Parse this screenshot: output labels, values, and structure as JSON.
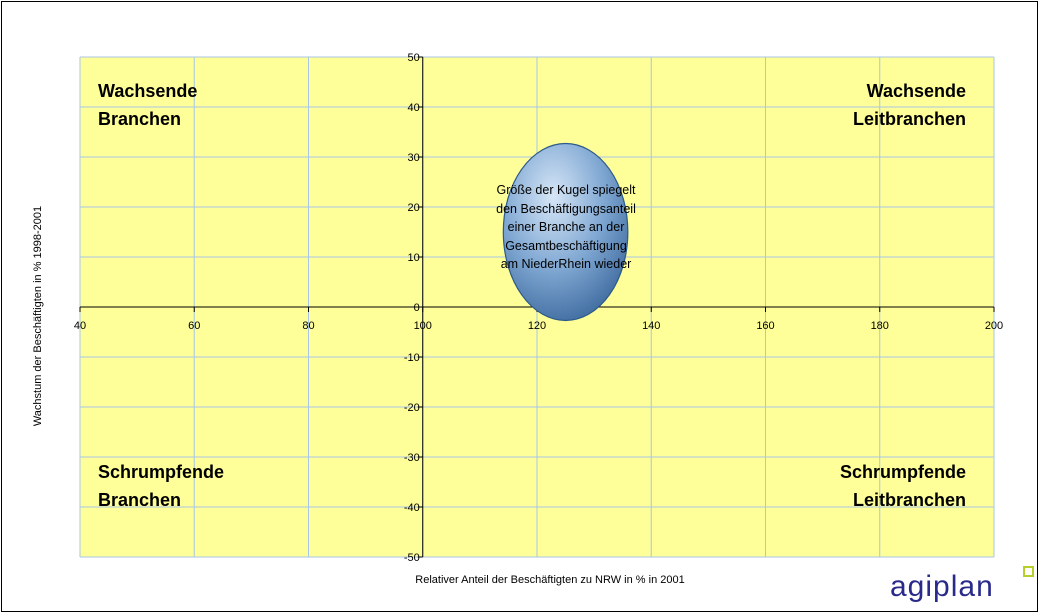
{
  "chart_data": {
    "type": "bubble",
    "xlabel": "Relativer Anteil der Beschäftigten zu NRW in % in 2001",
    "ylabel": "Wachstum der Beschäftigten in % 1998-2001",
    "xlim": [
      40,
      200
    ],
    "ylim": [
      -50,
      50
    ],
    "x_ticks": [
      40,
      60,
      80,
      100,
      120,
      140,
      160,
      180,
      200
    ],
    "y_ticks": [
      50,
      40,
      30,
      20,
      10,
      0,
      -10,
      -20,
      -30,
      -40,
      -50
    ],
    "grid": true,
    "axes_cross_at": {
      "x": 100,
      "y": 0
    },
    "plot_background": "#ffff99",
    "gridline_color": "#a8c6e6",
    "points": [
      {
        "x": 125,
        "y": 15,
        "size": "large",
        "color": "#6f9bc9",
        "label_lines": [
          "Größe der Kugel spiegelt",
          "den Beschäftigungsanteil",
          "einer Branche an der",
          "Gesamtbeschäftigung",
          "am NiederRhein wieder"
        ]
      }
    ],
    "quadrant_labels": {
      "top_left": [
        "Wachsende",
        "Branchen"
      ],
      "top_right": [
        "Wachsende",
        "Leitbranchen"
      ],
      "bottom_left": [
        "Schrumpfende",
        "Branchen"
      ],
      "bottom_right": [
        "Schrumpfende",
        "Leitbranchen"
      ]
    }
  },
  "logo": {
    "text": "agiplan",
    "square_color": "#b8cf2a",
    "text_color": "#2a2a8a"
  }
}
